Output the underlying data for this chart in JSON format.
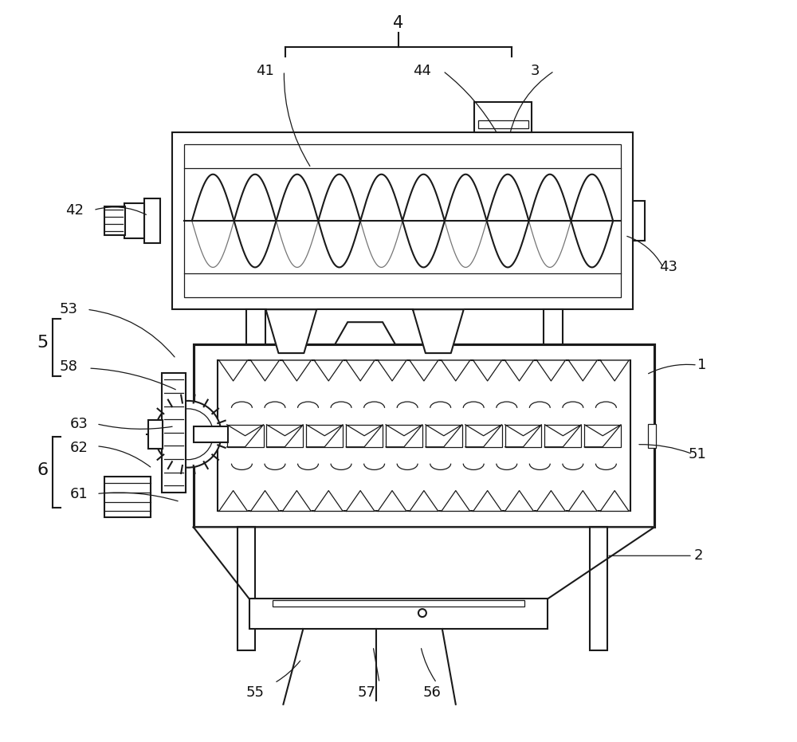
{
  "bg_color": "#ffffff",
  "lc": "#1a1a1a",
  "lw": 1.5,
  "tlw": 0.9,
  "figsize": [
    10.0,
    9.31
  ],
  "dpi": 100,
  "labels": [
    [
      "4",
      500,
      28,
      15
    ],
    [
      "41",
      332,
      88,
      13
    ],
    [
      "44",
      530,
      88,
      13
    ],
    [
      "3",
      672,
      88,
      13
    ],
    [
      "42",
      92,
      263,
      13
    ],
    [
      "43",
      840,
      335,
      13
    ],
    [
      "53",
      85,
      388,
      13
    ],
    [
      "5",
      52,
      430,
      16
    ],
    [
      "58",
      85,
      460,
      13
    ],
    [
      "63",
      98,
      532,
      13
    ],
    [
      "62",
      98,
      562,
      13
    ],
    [
      "6",
      52,
      590,
      16
    ],
    [
      "61",
      98,
      620,
      13
    ],
    [
      "1",
      882,
      458,
      13
    ],
    [
      "51",
      876,
      570,
      13
    ],
    [
      "2",
      878,
      698,
      13
    ],
    [
      "55",
      320,
      870,
      13
    ],
    [
      "57",
      460,
      870,
      13
    ],
    [
      "56",
      542,
      870,
      13
    ]
  ],
  "leaders": [
    [
      "41",
      348,
      88,
      390,
      210,
      0.15
    ],
    [
      "44",
      548,
      88,
      625,
      168,
      -0.1
    ],
    [
      "3",
      688,
      88,
      640,
      168,
      0.2
    ],
    [
      "42",
      108,
      263,
      185,
      270,
      -0.2
    ],
    [
      "43",
      825,
      335,
      785,
      295,
      0.2
    ],
    [
      "53",
      100,
      388,
      220,
      450,
      -0.2
    ],
    [
      "58",
      102,
      462,
      222,
      490,
      -0.1
    ],
    [
      "63",
      112,
      532,
      218,
      535,
      0.1
    ],
    [
      "62",
      112,
      560,
      190,
      588,
      -0.15
    ],
    [
      "61",
      112,
      620,
      225,
      630,
      -0.1
    ],
    [
      "1",
      868,
      458,
      812,
      470,
      0.15
    ],
    [
      "51",
      862,
      570,
      800,
      558,
      0.1
    ],
    [
      "2",
      862,
      698,
      762,
      698,
      0.0
    ],
    [
      "55",
      336,
      858,
      378,
      828,
      0.1
    ],
    [
      "57",
      468,
      858,
      468,
      812,
      0.0
    ],
    [
      "56",
      540,
      858,
      528,
      812,
      -0.1
    ]
  ]
}
